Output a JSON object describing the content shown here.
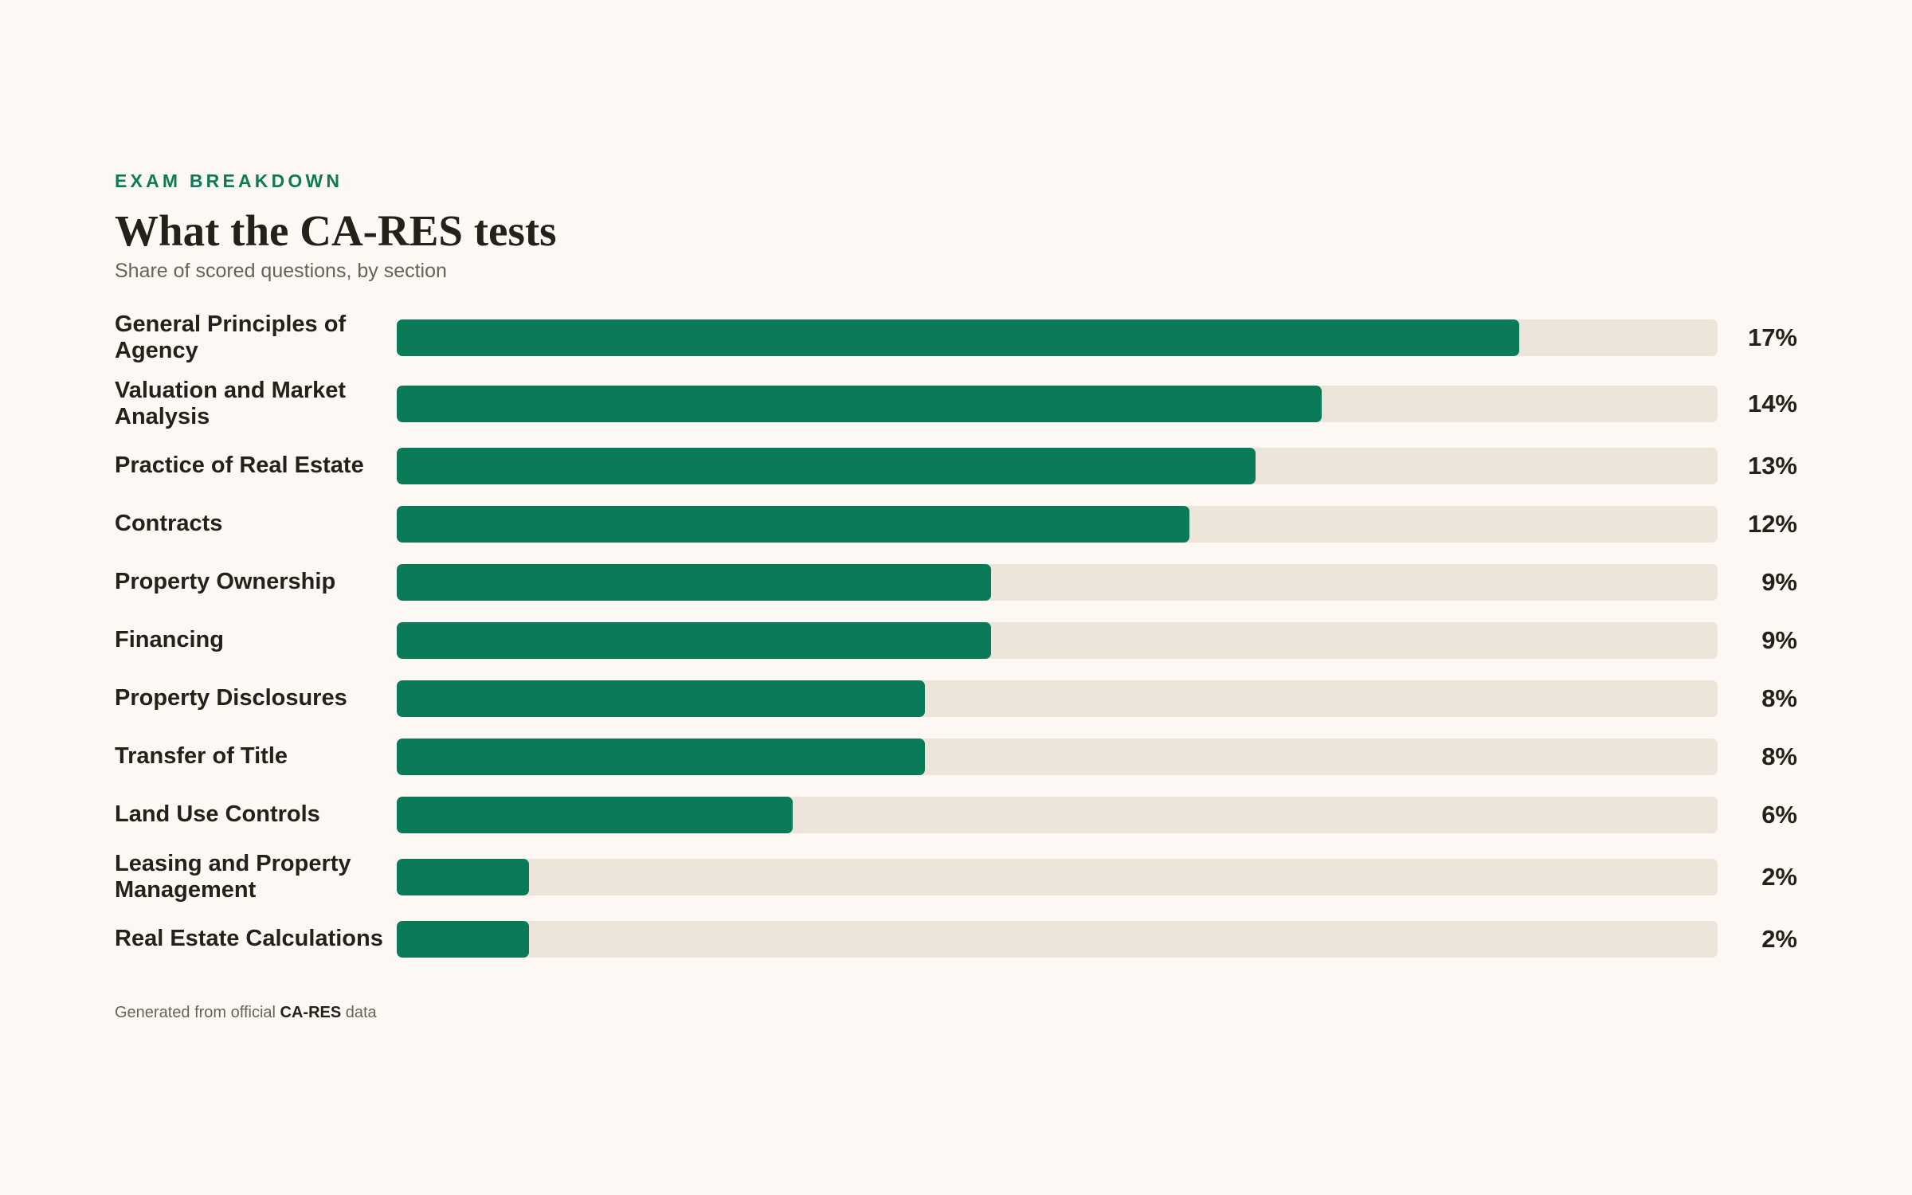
{
  "header": {
    "eyebrow": "EXAM BREAKDOWN",
    "title": "What the CA-RES tests",
    "subtitle": "Share of scored questions, by section"
  },
  "colors": {
    "accent": "#0b7a58",
    "track": "#ede5da",
    "background": "#fdf8f3",
    "text": "#24201a",
    "muted": "#69625a"
  },
  "chart_data": {
    "type": "bar",
    "orientation": "horizontal",
    "title": "What the CA-RES tests",
    "subtitle": "Share of scored questions, by section",
    "value_unit": "%",
    "xlim": [
      0,
      20
    ],
    "grid": false,
    "categories": [
      "General Principles of Agency",
      "Valuation and Market Analysis",
      "Practice of Real Estate",
      "Contracts",
      "Property Ownership",
      "Financing",
      "Property Disclosures",
      "Transfer of Title",
      "Land Use Controls",
      "Leasing and Property Management",
      "Real Estate Calculations"
    ],
    "values": [
      17,
      14,
      13,
      12,
      9,
      9,
      8,
      8,
      6,
      2,
      2
    ],
    "value_labels": [
      "17%",
      "14%",
      "13%",
      "12%",
      "9%",
      "9%",
      "8%",
      "8%",
      "6%",
      "2%",
      "2%"
    ]
  },
  "footer": {
    "prefix": "Generated from official",
    "brand": "CA-RES",
    "suffix": "data"
  }
}
